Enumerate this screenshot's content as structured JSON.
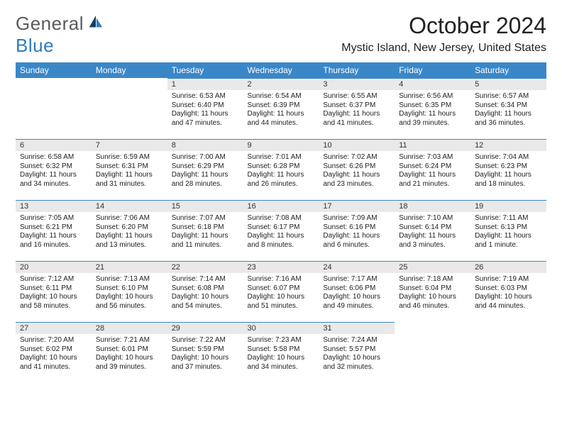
{
  "brand": {
    "top": "General",
    "bottom": "Blue"
  },
  "page_title": "October 2024",
  "subtitle": "Mystic Island, New Jersey, United States",
  "colors": {
    "header_bg": "#3a87c8",
    "header_text": "#ffffff",
    "daynum_bg": "#e9e9e9",
    "daynum_border": "#3a87c8",
    "body_bg": "#ffffff",
    "text": "#222222",
    "brand_gray": "#5a5a5a",
    "brand_blue": "#2f7ac0"
  },
  "day_labels": [
    "Sunday",
    "Monday",
    "Tuesday",
    "Wednesday",
    "Thursday",
    "Friday",
    "Saturday"
  ],
  "weeks": [
    [
      null,
      null,
      {
        "n": 1,
        "sr": "6:53 AM",
        "ss": "6:40 PM",
        "dl": "11 hours and 47 minutes."
      },
      {
        "n": 2,
        "sr": "6:54 AM",
        "ss": "6:39 PM",
        "dl": "11 hours and 44 minutes."
      },
      {
        "n": 3,
        "sr": "6:55 AM",
        "ss": "6:37 PM",
        "dl": "11 hours and 41 minutes."
      },
      {
        "n": 4,
        "sr": "6:56 AM",
        "ss": "6:35 PM",
        "dl": "11 hours and 39 minutes."
      },
      {
        "n": 5,
        "sr": "6:57 AM",
        "ss": "6:34 PM",
        "dl": "11 hours and 36 minutes."
      }
    ],
    [
      {
        "n": 6,
        "sr": "6:58 AM",
        "ss": "6:32 PM",
        "dl": "11 hours and 34 minutes."
      },
      {
        "n": 7,
        "sr": "6:59 AM",
        "ss": "6:31 PM",
        "dl": "11 hours and 31 minutes."
      },
      {
        "n": 8,
        "sr": "7:00 AM",
        "ss": "6:29 PM",
        "dl": "11 hours and 28 minutes."
      },
      {
        "n": 9,
        "sr": "7:01 AM",
        "ss": "6:28 PM",
        "dl": "11 hours and 26 minutes."
      },
      {
        "n": 10,
        "sr": "7:02 AM",
        "ss": "6:26 PM",
        "dl": "11 hours and 23 minutes."
      },
      {
        "n": 11,
        "sr": "7:03 AM",
        "ss": "6:24 PM",
        "dl": "11 hours and 21 minutes."
      },
      {
        "n": 12,
        "sr": "7:04 AM",
        "ss": "6:23 PM",
        "dl": "11 hours and 18 minutes."
      }
    ],
    [
      {
        "n": 13,
        "sr": "7:05 AM",
        "ss": "6:21 PM",
        "dl": "11 hours and 16 minutes."
      },
      {
        "n": 14,
        "sr": "7:06 AM",
        "ss": "6:20 PM",
        "dl": "11 hours and 13 minutes."
      },
      {
        "n": 15,
        "sr": "7:07 AM",
        "ss": "6:18 PM",
        "dl": "11 hours and 11 minutes."
      },
      {
        "n": 16,
        "sr": "7:08 AM",
        "ss": "6:17 PM",
        "dl": "11 hours and 8 minutes."
      },
      {
        "n": 17,
        "sr": "7:09 AM",
        "ss": "6:16 PM",
        "dl": "11 hours and 6 minutes."
      },
      {
        "n": 18,
        "sr": "7:10 AM",
        "ss": "6:14 PM",
        "dl": "11 hours and 3 minutes."
      },
      {
        "n": 19,
        "sr": "7:11 AM",
        "ss": "6:13 PM",
        "dl": "11 hours and 1 minute."
      }
    ],
    [
      {
        "n": 20,
        "sr": "7:12 AM",
        "ss": "6:11 PM",
        "dl": "10 hours and 58 minutes."
      },
      {
        "n": 21,
        "sr": "7:13 AM",
        "ss": "6:10 PM",
        "dl": "10 hours and 56 minutes."
      },
      {
        "n": 22,
        "sr": "7:14 AM",
        "ss": "6:08 PM",
        "dl": "10 hours and 54 minutes."
      },
      {
        "n": 23,
        "sr": "7:16 AM",
        "ss": "6:07 PM",
        "dl": "10 hours and 51 minutes."
      },
      {
        "n": 24,
        "sr": "7:17 AM",
        "ss": "6:06 PM",
        "dl": "10 hours and 49 minutes."
      },
      {
        "n": 25,
        "sr": "7:18 AM",
        "ss": "6:04 PM",
        "dl": "10 hours and 46 minutes."
      },
      {
        "n": 26,
        "sr": "7:19 AM",
        "ss": "6:03 PM",
        "dl": "10 hours and 44 minutes."
      }
    ],
    [
      {
        "n": 27,
        "sr": "7:20 AM",
        "ss": "6:02 PM",
        "dl": "10 hours and 41 minutes."
      },
      {
        "n": 28,
        "sr": "7:21 AM",
        "ss": "6:01 PM",
        "dl": "10 hours and 39 minutes."
      },
      {
        "n": 29,
        "sr": "7:22 AM",
        "ss": "5:59 PM",
        "dl": "10 hours and 37 minutes."
      },
      {
        "n": 30,
        "sr": "7:23 AM",
        "ss": "5:58 PM",
        "dl": "10 hours and 34 minutes."
      },
      {
        "n": 31,
        "sr": "7:24 AM",
        "ss": "5:57 PM",
        "dl": "10 hours and 32 minutes."
      },
      null,
      null
    ]
  ],
  "labels": {
    "sunrise": "Sunrise:",
    "sunset": "Sunset:",
    "daylight": "Daylight:"
  }
}
